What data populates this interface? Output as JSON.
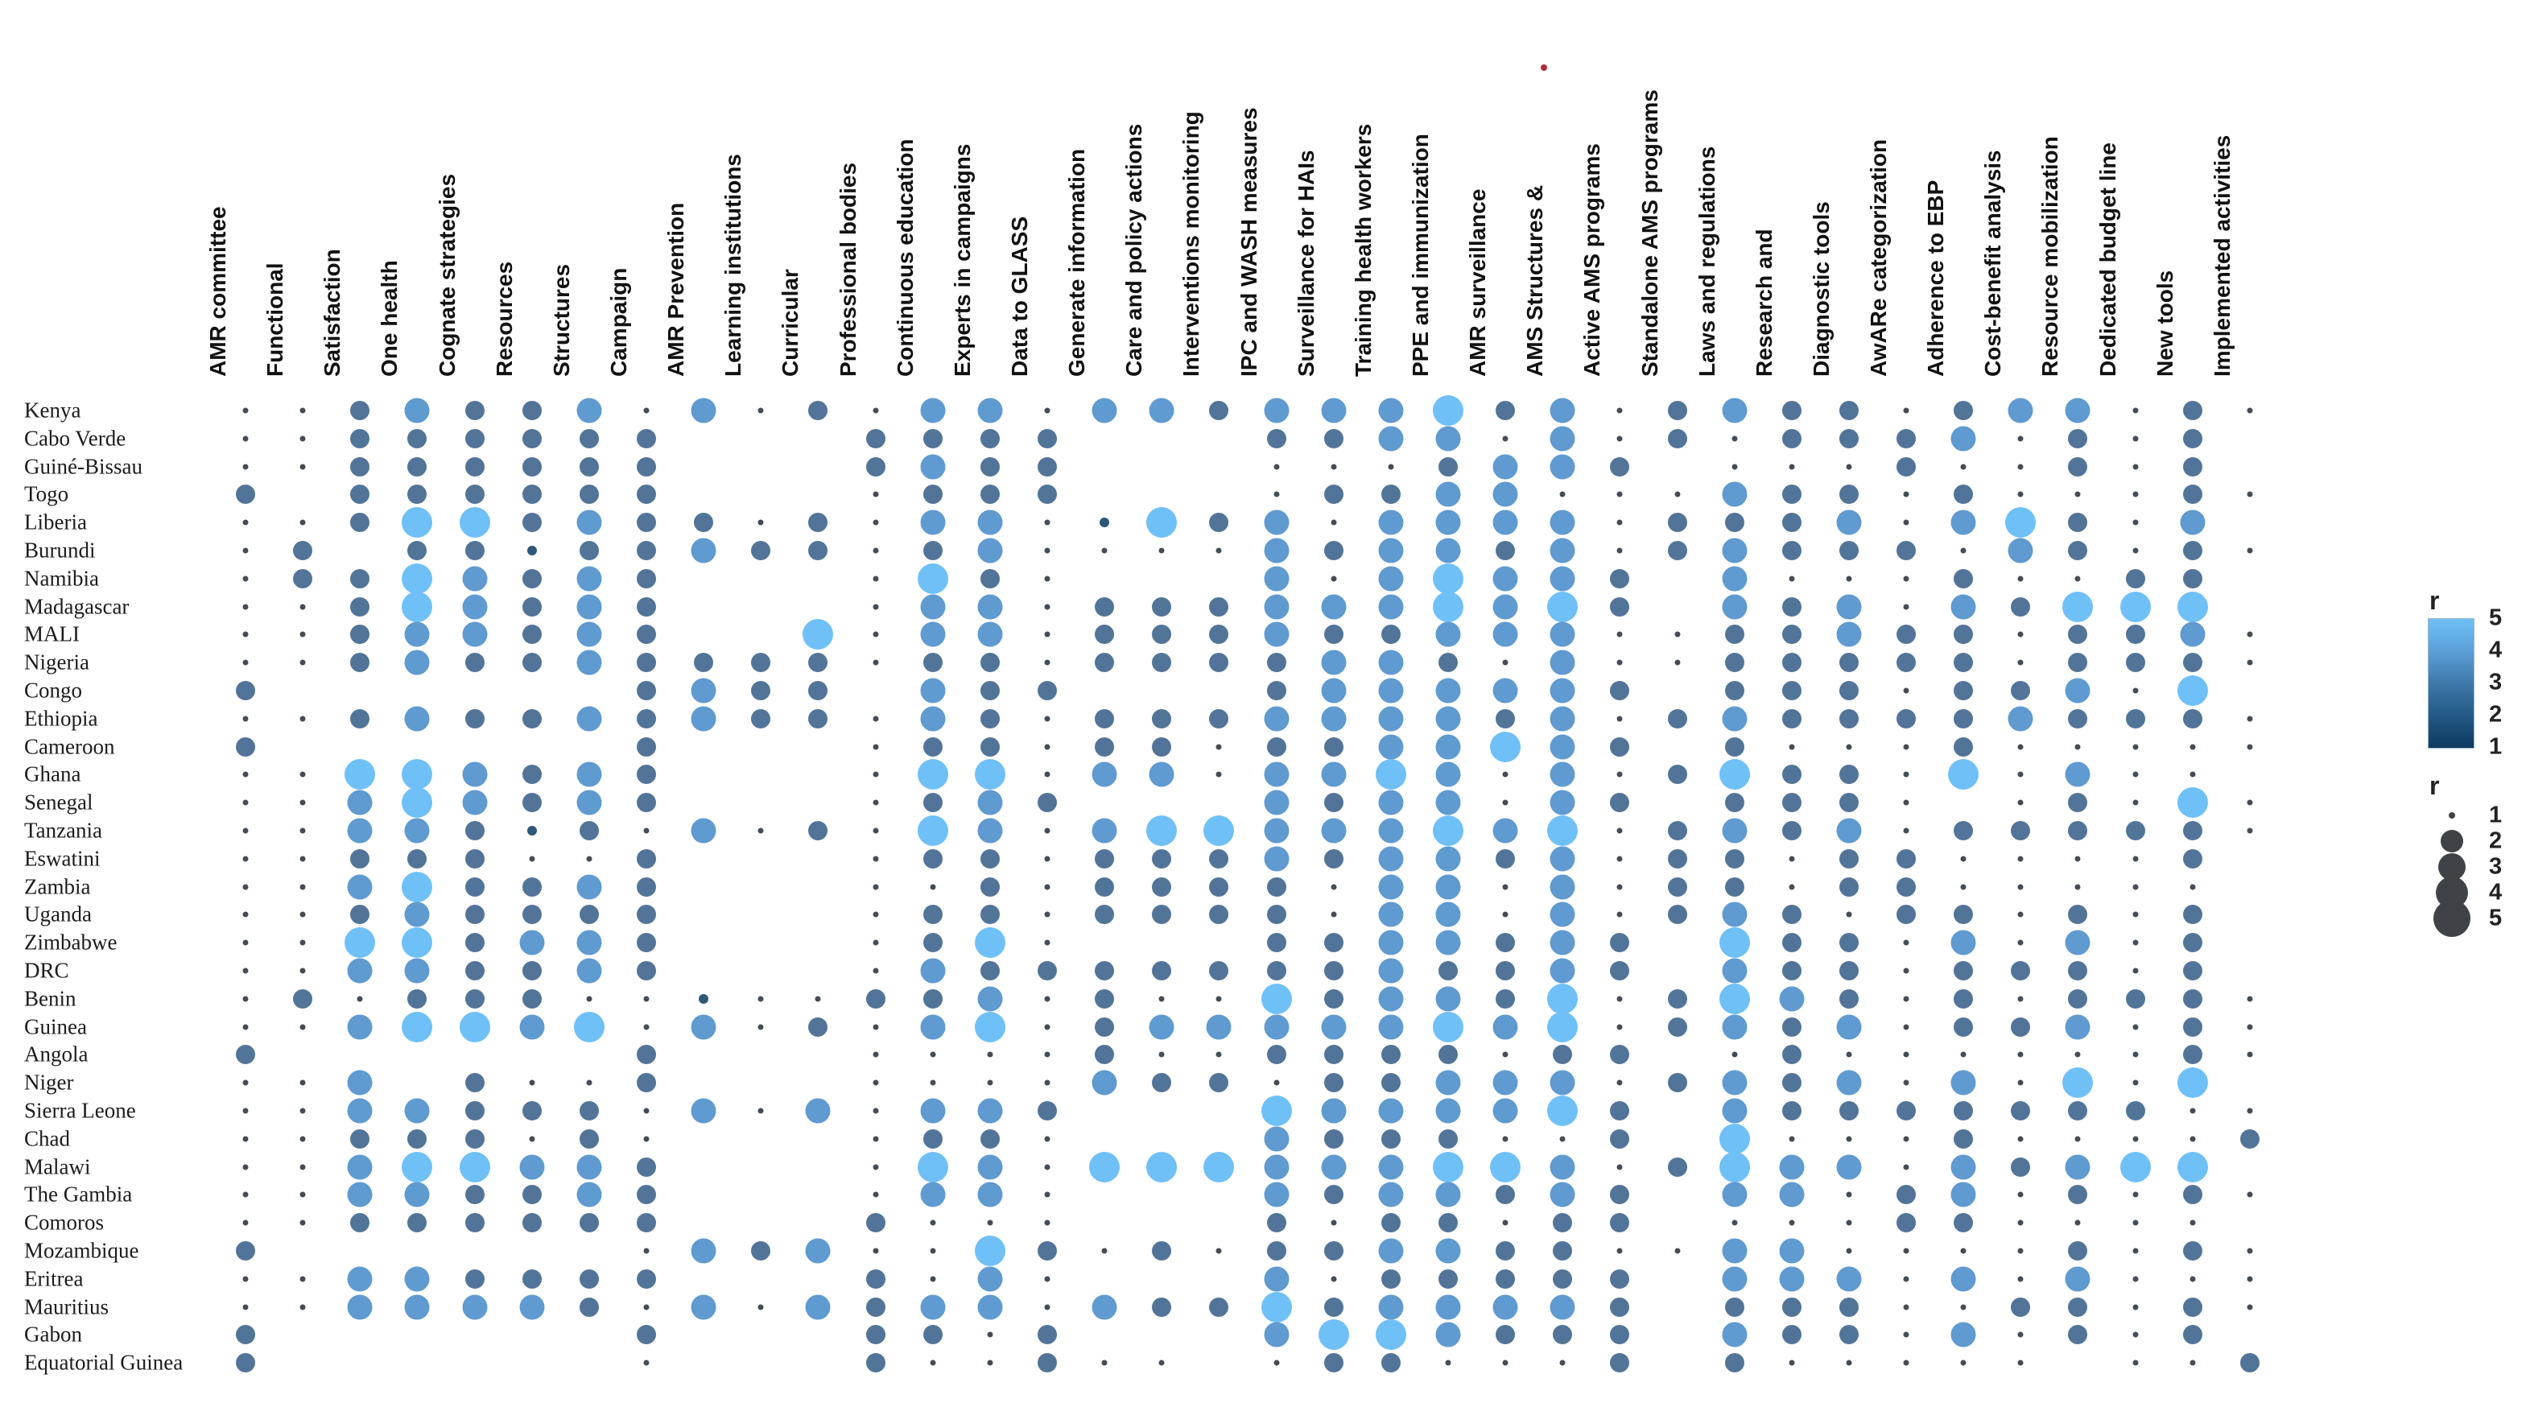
{
  "chart_data": {
    "type": "bubble_matrix",
    "title": "",
    "description": "Country vs AMR-indicator bubble matrix; dot size and colour both encode r (1-5)",
    "rows": [
      "Kenya",
      "Cabo Verde",
      "Guiné-Bissau",
      "Togo",
      "Liberia",
      "Burundi",
      "Namibia",
      "Madagascar",
      "MALI",
      "Nigeria",
      "Congo",
      "Ethiopia",
      "Cameroon",
      "Ghana",
      "Senegal",
      "Tanzania",
      "Eswatini",
      "Zambia",
      "Uganda",
      "Zimbabwe",
      "DRC",
      "Benin",
      "Guinea",
      "Angola",
      "Niger",
      "Sierra Leone",
      "Chad",
      "Malawi",
      "The Gambia",
      "Comoros",
      "Mozambique",
      "Eritrea",
      "Mauritius",
      "Gabon",
      "Equatorial Guinea"
    ],
    "columns": [
      "AMR committee",
      "Functional",
      "Satisfaction",
      "One health",
      "Cognate strategies",
      "Resources",
      "Structures",
      "Campaign",
      "AMR Prevention",
      "Learning institutions",
      "Curricular",
      "Professional bodies",
      "Continuous education",
      "Experts in campaigns",
      "Data to GLASS",
      "Generate information",
      "Care and policy actions",
      "Interventions monitoring",
      "IPC and WASH measures",
      "Surveillance for HAIs",
      "Training health workers",
      "PPE and immunization",
      "AMR surveillance",
      "AMS Structures &",
      "Active AMS programs",
      "Standalone AMS programs",
      "Laws and regulations",
      "Research and",
      "Diagnostic tools",
      "AwARe categorization",
      "Adherence to EBP",
      "Cost-benefit analysis",
      "Resource mobilization",
      "Dedicated budget line",
      "New tools",
      "Implemented activities"
    ],
    "values": [
      [
        1,
        1,
        3,
        4,
        3,
        3,
        4,
        1,
        4,
        1,
        3,
        1,
        4,
        4,
        1,
        4,
        4,
        3,
        4,
        4,
        4,
        5,
        3,
        4,
        1,
        3,
        4,
        3,
        3,
        1,
        3,
        4,
        4,
        1,
        3,
        1
      ],
      [
        1,
        1,
        3,
        3,
        3,
        3,
        3,
        3,
        0,
        0,
        0,
        3,
        3,
        3,
        3,
        0,
        0,
        0,
        3,
        3,
        4,
        4,
        1,
        4,
        1,
        3,
        1,
        3,
        3,
        3,
        4,
        1,
        3,
        1,
        3,
        0
      ],
      [
        1,
        1,
        3,
        3,
        3,
        3,
        3,
        3,
        0,
        0,
        0,
        3,
        4,
        3,
        3,
        0,
        0,
        0,
        1,
        1,
        1,
        3,
        4,
        4,
        3,
        0,
        1,
        1,
        1,
        3,
        1,
        1,
        3,
        1,
        3,
        0
      ],
      [
        3,
        0,
        3,
        3,
        3,
        3,
        3,
        3,
        0,
        0,
        0,
        1,
        3,
        3,
        3,
        0,
        0,
        0,
        1,
        3,
        3,
        4,
        4,
        1,
        1,
        1,
        4,
        3,
        3,
        1,
        3,
        1,
        1,
        1,
        3,
        1
      ],
      [
        1,
        1,
        3,
        5,
        5,
        3,
        4,
        3,
        3,
        1,
        3,
        1,
        4,
        4,
        1,
        2,
        5,
        3,
        4,
        1,
        4,
        4,
        4,
        4,
        1,
        3,
        3,
        3,
        4,
        1,
        4,
        5,
        3,
        1,
        4,
        0
      ],
      [
        1,
        3,
        0,
        3,
        3,
        2,
        3,
        3,
        4,
        3,
        3,
        1,
        3,
        4,
        1,
        1,
        1,
        1,
        4,
        3,
        4,
        4,
        3,
        4,
        1,
        3,
        4,
        3,
        3,
        3,
        1,
        4,
        3,
        1,
        3,
        1
      ],
      [
        1,
        3,
        3,
        5,
        4,
        3,
        4,
        3,
        0,
        0,
        0,
        1,
        5,
        3,
        1,
        0,
        0,
        0,
        4,
        1,
        4,
        5,
        4,
        4,
        3,
        0,
        4,
        1,
        1,
        1,
        3,
        1,
        1,
        3,
        3,
        0
      ],
      [
        1,
        1,
        3,
        5,
        4,
        3,
        4,
        3,
        0,
        0,
        0,
        1,
        4,
        4,
        1,
        3,
        3,
        3,
        4,
        4,
        4,
        5,
        4,
        5,
        3,
        0,
        4,
        3,
        4,
        1,
        4,
        3,
        5,
        5,
        5,
        0
      ],
      [
        1,
        1,
        3,
        4,
        4,
        3,
        4,
        3,
        0,
        0,
        5,
        1,
        4,
        4,
        1,
        3,
        3,
        3,
        4,
        3,
        3,
        4,
        4,
        4,
        1,
        1,
        3,
        3,
        4,
        3,
        3,
        1,
        3,
        3,
        4,
        1
      ],
      [
        1,
        1,
        3,
        4,
        3,
        3,
        4,
        3,
        3,
        3,
        3,
        1,
        3,
        3,
        1,
        3,
        3,
        3,
        3,
        4,
        4,
        3,
        1,
        4,
        1,
        1,
        3,
        3,
        3,
        3,
        3,
        1,
        3,
        3,
        3,
        1
      ],
      [
        3,
        0,
        0,
        0,
        0,
        0,
        0,
        3,
        4,
        3,
        3,
        0,
        4,
        3,
        3,
        0,
        0,
        0,
        3,
        4,
        4,
        4,
        4,
        4,
        3,
        0,
        3,
        3,
        3,
        1,
        3,
        3,
        4,
        1,
        5,
        0
      ],
      [
        1,
        1,
        3,
        4,
        3,
        3,
        4,
        3,
        4,
        3,
        3,
        1,
        4,
        3,
        1,
        3,
        3,
        3,
        4,
        4,
        4,
        4,
        3,
        4,
        1,
        3,
        4,
        3,
        3,
        3,
        3,
        4,
        3,
        3,
        3,
        1
      ],
      [
        3,
        0,
        0,
        0,
        0,
        0,
        0,
        3,
        0,
        0,
        0,
        1,
        3,
        3,
        1,
        3,
        3,
        1,
        3,
        3,
        4,
        4,
        5,
        4,
        3,
        0,
        3,
        1,
        1,
        1,
        3,
        1,
        1,
        1,
        1,
        1
      ],
      [
        1,
        1,
        5,
        5,
        4,
        3,
        4,
        3,
        0,
        0,
        0,
        1,
        5,
        5,
        1,
        4,
        4,
        1,
        4,
        4,
        5,
        4,
        1,
        4,
        1,
        3,
        5,
        3,
        3,
        1,
        5,
        1,
        4,
        1,
        1,
        0
      ],
      [
        1,
        1,
        4,
        5,
        4,
        3,
        4,
        3,
        0,
        0,
        0,
        1,
        3,
        4,
        3,
        0,
        0,
        0,
        4,
        3,
        4,
        4,
        1,
        4,
        3,
        0,
        3,
        3,
        3,
        1,
        0,
        1,
        3,
        1,
        5,
        1
      ],
      [
        1,
        1,
        4,
        4,
        3,
        2,
        3,
        1,
        4,
        1,
        3,
        1,
        5,
        4,
        1,
        4,
        5,
        5,
        4,
        4,
        4,
        5,
        4,
        5,
        1,
        3,
        4,
        3,
        4,
        1,
        3,
        3,
        3,
        3,
        3,
        1
      ],
      [
        1,
        1,
        3,
        3,
        3,
        1,
        1,
        3,
        0,
        0,
        0,
        1,
        3,
        3,
        1,
        3,
        3,
        3,
        4,
        3,
        4,
        4,
        3,
        4,
        1,
        3,
        3,
        1,
        3,
        3,
        1,
        1,
        1,
        1,
        3,
        0
      ],
      [
        1,
        1,
        4,
        5,
        3,
        3,
        4,
        3,
        0,
        0,
        0,
        1,
        1,
        3,
        1,
        3,
        3,
        3,
        3,
        1,
        4,
        4,
        1,
        4,
        1,
        3,
        3,
        1,
        3,
        3,
        1,
        1,
        1,
        1,
        1,
        0
      ],
      [
        1,
        1,
        3,
        4,
        3,
        3,
        3,
        3,
        0,
        0,
        0,
        1,
        3,
        3,
        1,
        3,
        3,
        3,
        3,
        1,
        4,
        4,
        1,
        4,
        1,
        3,
        4,
        3,
        1,
        3,
        3,
        1,
        3,
        1,
        3,
        0
      ],
      [
        1,
        1,
        5,
        5,
        3,
        4,
        4,
        3,
        0,
        0,
        0,
        1,
        3,
        5,
        1,
        0,
        0,
        0,
        3,
        3,
        4,
        4,
        3,
        4,
        3,
        0,
        5,
        3,
        3,
        1,
        4,
        1,
        4,
        1,
        3,
        0
      ],
      [
        1,
        1,
        4,
        4,
        3,
        3,
        4,
        3,
        0,
        0,
        0,
        1,
        4,
        3,
        3,
        3,
        3,
        3,
        3,
        3,
        4,
        3,
        3,
        4,
        3,
        0,
        4,
        3,
        3,
        1,
        3,
        3,
        3,
        1,
        3,
        0
      ],
      [
        1,
        3,
        1,
        3,
        3,
        3,
        1,
        1,
        2,
        1,
        1,
        3,
        3,
        4,
        1,
        3,
        1,
        1,
        5,
        3,
        4,
        4,
        3,
        5,
        1,
        3,
        5,
        4,
        3,
        1,
        3,
        1,
        3,
        3,
        3,
        1
      ],
      [
        1,
        1,
        4,
        5,
        5,
        4,
        5,
        1,
        4,
        1,
        3,
        1,
        4,
        5,
        1,
        3,
        4,
        4,
        4,
        4,
        4,
        5,
        4,
        5,
        1,
        3,
        4,
        3,
        4,
        1,
        3,
        3,
        4,
        1,
        3,
        1
      ],
      [
        3,
        0,
        0,
        0,
        0,
        0,
        0,
        3,
        0,
        0,
        0,
        1,
        1,
        1,
        1,
        3,
        1,
        1,
        3,
        3,
        3,
        3,
        1,
        3,
        3,
        0,
        1,
        3,
        1,
        1,
        1,
        1,
        1,
        1,
        3,
        1
      ],
      [
        1,
        1,
        4,
        0,
        3,
        1,
        1,
        3,
        0,
        0,
        0,
        1,
        1,
        1,
        1,
        4,
        3,
        3,
        1,
        3,
        3,
        4,
        4,
        4,
        1,
        3,
        4,
        3,
        4,
        1,
        4,
        1,
        5,
        1,
        5,
        0
      ],
      [
        1,
        1,
        4,
        4,
        3,
        3,
        3,
        1,
        4,
        1,
        4,
        1,
        4,
        4,
        3,
        0,
        0,
        0,
        5,
        4,
        4,
        4,
        4,
        5,
        3,
        0,
        4,
        3,
        3,
        3,
        3,
        3,
        3,
        3,
        1,
        1
      ],
      [
        1,
        1,
        3,
        3,
        3,
        1,
        3,
        1,
        0,
        0,
        0,
        1,
        3,
        3,
        1,
        0,
        0,
        0,
        4,
        3,
        3,
        3,
        1,
        1,
        3,
        0,
        5,
        1,
        1,
        1,
        3,
        1,
        1,
        1,
        1,
        3
      ],
      [
        1,
        1,
        4,
        5,
        5,
        4,
        4,
        3,
        0,
        0,
        0,
        1,
        5,
        4,
        1,
        5,
        5,
        5,
        4,
        4,
        4,
        5,
        5,
        4,
        1,
        3,
        5,
        4,
        4,
        1,
        4,
        3,
        4,
        5,
        5,
        0
      ],
      [
        1,
        1,
        4,
        4,
        3,
        3,
        4,
        3,
        0,
        0,
        0,
        1,
        4,
        4,
        1,
        0,
        0,
        0,
        4,
        3,
        4,
        4,
        3,
        4,
        3,
        0,
        4,
        4,
        1,
        3,
        4,
        1,
        3,
        1,
        3,
        1
      ],
      [
        1,
        1,
        3,
        3,
        3,
        3,
        3,
        3,
        0,
        0,
        0,
        3,
        1,
        1,
        1,
        0,
        0,
        0,
        3,
        1,
        3,
        3,
        1,
        3,
        3,
        0,
        1,
        1,
        1,
        3,
        3,
        1,
        1,
        1,
        1,
        0
      ],
      [
        3,
        0,
        0,
        0,
        0,
        0,
        0,
        1,
        4,
        3,
        4,
        1,
        1,
        5,
        3,
        1,
        3,
        1,
        3,
        3,
        4,
        4,
        3,
        3,
        1,
        1,
        4,
        4,
        1,
        1,
        1,
        1,
        3,
        1,
        3,
        1
      ],
      [
        1,
        1,
        4,
        4,
        3,
        3,
        3,
        3,
        0,
        0,
        0,
        3,
        1,
        4,
        1,
        0,
        0,
        0,
        4,
        1,
        3,
        3,
        3,
        3,
        3,
        0,
        4,
        4,
        4,
        1,
        4,
        1,
        4,
        1,
        1,
        1
      ],
      [
        1,
        1,
        4,
        4,
        4,
        4,
        3,
        1,
        4,
        1,
        4,
        3,
        4,
        4,
        1,
        4,
        3,
        3,
        5,
        3,
        4,
        4,
        4,
        4,
        3,
        0,
        3,
        3,
        3,
        1,
        1,
        3,
        3,
        1,
        3,
        1
      ],
      [
        3,
        0,
        0,
        0,
        0,
        0,
        0,
        3,
        0,
        0,
        0,
        3,
        3,
        1,
        3,
        0,
        0,
        0,
        4,
        5,
        5,
        4,
        3,
        3,
        3,
        0,
        4,
        3,
        3,
        1,
        4,
        1,
        3,
        1,
        3,
        0
      ],
      [
        3,
        0,
        0,
        0,
        0,
        0,
        0,
        1,
        0,
        0,
        0,
        3,
        1,
        1,
        3,
        1,
        1,
        0,
        1,
        3,
        3,
        1,
        1,
        1,
        3,
        0,
        3,
        1,
        1,
        1,
        1,
        1,
        0,
        1,
        1,
        3
      ]
    ],
    "value_range": [
      1,
      5
    ],
    "value_colors": {
      "1": "#454c55",
      "2": "#2f5878",
      "3": "#527499",
      "4": "#5f9ad0",
      "5": "#6fc0f7"
    },
    "color_legend": {
      "title": "r",
      "ticks": [
        5,
        4,
        3,
        2,
        1
      ],
      "gradient_top": "#6fc0f7",
      "gradient_upper": "#5b9fd8",
      "gradient_mid": "#3f78aa",
      "gradient_lower": "#235a86",
      "gradient_bottom": "#0e3a5f"
    },
    "size_legend": {
      "title": "r",
      "ticks": [
        1,
        2,
        3,
        4,
        5
      ],
      "dot_color": "#3f4347"
    },
    "annotations": {
      "stray_red_dot_color": "#b52a3c"
    },
    "layout_hints": {
      "grid": "off",
      "legend_position": "right",
      "header_rotation_deg": -90
    }
  }
}
